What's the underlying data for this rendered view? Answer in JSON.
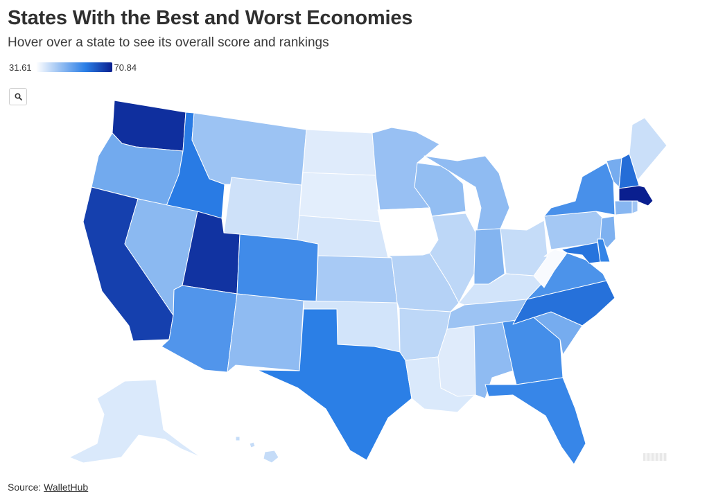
{
  "title": "States With the Best and Worst Economies",
  "subtitle": "Hover over a state to see its overall score and rankings",
  "legend": {
    "min_label": "31.61",
    "max_label": "70.84",
    "min_value": 31.61,
    "max_value": 70.84,
    "color_low": "#ffffff",
    "color_mid": "#2a7ee6",
    "color_high": "#0a1f8f"
  },
  "search": {
    "icon": "search-icon"
  },
  "source": {
    "label": "Source:",
    "link_text": "WalletHub"
  },
  "states": [
    {
      "code": "WA",
      "score": 68.5
    },
    {
      "code": "OR",
      "score": 48.5
    },
    {
      "code": "CA",
      "score": 66.0
    },
    {
      "code": "ID",
      "score": 57.5
    },
    {
      "code": "NV",
      "score": 45.5
    },
    {
      "code": "MT",
      "score": 43.5
    },
    {
      "code": "WY",
      "score": 37.5
    },
    {
      "code": "UT",
      "score": 68.0
    },
    {
      "code": "AZ",
      "score": 52.5
    },
    {
      "code": "CO",
      "score": 54.5
    },
    {
      "code": "NM",
      "score": 45.0
    },
    {
      "code": "ND",
      "score": 35.5
    },
    {
      "code": "SD",
      "score": 35.0
    },
    {
      "code": "NE",
      "score": 36.5
    },
    {
      "code": "KS",
      "score": 42.0
    },
    {
      "code": "OK",
      "score": 37.0
    },
    {
      "code": "TX",
      "score": 57.0
    },
    {
      "code": "MN",
      "score": 44.0
    },
    {
      "code": "IA",
      "score": 31.61
    },
    {
      "code": "MO",
      "score": 40.5
    },
    {
      "code": "AR",
      "score": 39.5
    },
    {
      "code": "LA",
      "score": 36.0
    },
    {
      "code": "WI",
      "score": 44.5
    },
    {
      "code": "IL",
      "score": 39.5
    },
    {
      "code": "MI",
      "score": 45.0
    },
    {
      "code": "IN",
      "score": 46.5
    },
    {
      "code": "OH",
      "score": 38.5
    },
    {
      "code": "KY",
      "score": 37.0
    },
    {
      "code": "TN",
      "score": 43.5
    },
    {
      "code": "MS",
      "score": 35.5
    },
    {
      "code": "AL",
      "score": 45.0
    },
    {
      "code": "GA",
      "score": 54.0
    },
    {
      "code": "FL",
      "score": 55.5
    },
    {
      "code": "SC",
      "score": 48.0
    },
    {
      "code": "NC",
      "score": 59.0
    },
    {
      "code": "VA",
      "score": 53.0
    },
    {
      "code": "WV",
      "score": 32.5
    },
    {
      "code": "PA",
      "score": 42.5
    },
    {
      "code": "NY",
      "score": 53.5
    },
    {
      "code": "VT",
      "score": 48.0
    },
    {
      "code": "NH",
      "score": 59.5
    },
    {
      "code": "ME",
      "score": 38.0
    },
    {
      "code": "MA",
      "score": 70.84
    },
    {
      "code": "CT",
      "score": 46.0
    },
    {
      "code": "RI",
      "score": 43.0
    },
    {
      "code": "NJ",
      "score": 47.0
    },
    {
      "code": "DE",
      "score": 56.0
    },
    {
      "code": "MD",
      "score": 58.5
    },
    {
      "code": "AK",
      "score": 36.0
    },
    {
      "code": "HI",
      "score": 38.5
    }
  ]
}
